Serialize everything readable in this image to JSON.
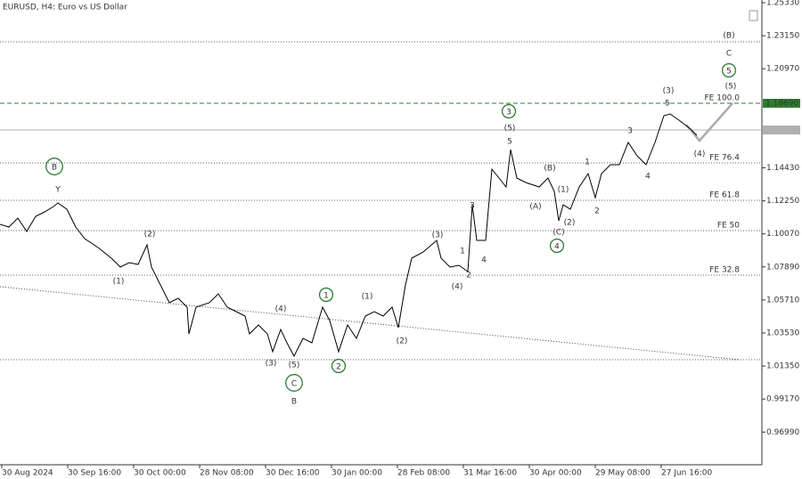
{
  "chart_data": {
    "type": "line",
    "title": "EURUSD, H4:  Euro vs US Dollar",
    "series": [
      {
        "color": "#000000",
        "x": [
          0,
          10,
          20,
          30,
          40,
          50,
          60,
          65,
          75,
          85,
          95,
          110,
          125,
          135,
          145,
          155,
          165,
          170,
          180,
          190,
          200,
          210,
          212,
          220,
          235,
          245,
          255,
          265,
          275,
          280,
          290,
          300,
          306,
          315,
          322,
          330,
          340,
          350,
          362,
          370,
          380,
          390,
          400,
          410,
          420,
          430,
          440,
          447,
          455,
          462,
          475,
          490,
          495,
          505,
          515,
          525,
          530,
          535,
          545,
          552,
          560,
          568,
          573,
          580,
          590,
          605,
          615,
          622,
          627,
          632,
          640,
          650,
          660,
          668,
          675,
          685,
          695,
          705,
          715,
          725,
          735,
          745,
          752,
          762,
          775,
          782
        ],
        "values": [
          1.10699,
          1.10522,
          1.1111,
          1.10229,
          1.11228,
          1.11521,
          1.11874,
          1.12109,
          1.11698,
          1.10522,
          1.09759,
          1.09171,
          1.08466,
          1.07878,
          1.08172,
          1.08055,
          1.09347,
          1.07878,
          1.06703,
          1.05528,
          1.05822,
          1.05234,
          1.03471,
          1.05234,
          1.05528,
          1.06115,
          1.05234,
          1.0494,
          1.04647,
          1.03471,
          1.04059,
          1.03471,
          1.02296,
          1.03765,
          1.02884,
          1.02002,
          1.03177,
          1.02884,
          1.05234,
          1.04353,
          1.02296,
          1.04059,
          1.03177,
          1.04647,
          1.0494,
          1.04647,
          1.05234,
          1.03883,
          1.06703,
          1.08466,
          1.08877,
          1.09641,
          1.08466,
          1.07878,
          1.07996,
          1.07584,
          1.11991,
          1.09641,
          1.09641,
          1.14342,
          1.13754,
          1.13167,
          1.15635,
          1.13754,
          1.1346,
          1.13167,
          1.13754,
          1.12873,
          1.10934,
          1.11991,
          1.11698,
          1.13167,
          1.14048,
          1.12462,
          1.14048,
          1.14636,
          1.14636,
          1.16105,
          1.15223,
          1.14636,
          1.16105,
          1.17867,
          1.17985,
          1.17574,
          1.16986,
          1.16575
        ]
      }
    ],
    "xlim": [
      0,
      855
    ],
    "xticks": [
      {
        "value": 2,
        "label": "30 Aug 2024"
      },
      {
        "value": 76,
        "label": "30 Sep 16:00"
      },
      {
        "value": 150,
        "label": "30 Oct 00:00"
      },
      {
        "value": 224,
        "label": "28 Nov 08:00"
      },
      {
        "value": 298,
        "label": "30 Dec 16:00"
      },
      {
        "value": 372,
        "label": "30 Jan 00:00"
      },
      {
        "value": 446,
        "label": "28 Feb 08:00"
      },
      {
        "value": 520,
        "label": "31 Mar 16:00"
      },
      {
        "value": 594,
        "label": "30 Apr 00:00"
      },
      {
        "value": 668,
        "label": "29 May 08:00"
      },
      {
        "value": 742,
        "label": "27 Jun 16:00"
      }
    ],
    "ylim": [
      0.94834,
      1.25506
    ],
    "yticks": [
      {
        "value": 1.2533,
        "label": "1.25330"
      },
      {
        "value": 1.2315,
        "label": "1.23150"
      },
      {
        "value": 1.2097,
        "label": "1.20970"
      },
      {
        "value": 1.1443,
        "label": "1.14430"
      },
      {
        "value": 1.1225,
        "label": "1.12250"
      },
      {
        "value": 1.1007,
        "label": "1.10070"
      },
      {
        "value": 1.0789,
        "label": "1.07890"
      },
      {
        "value": 1.0571,
        "label": "1.05710"
      },
      {
        "value": 1.0353,
        "label": "1.03530"
      },
      {
        "value": 1.0135,
        "label": "1.01350"
      },
      {
        "value": 0.9917,
        "label": "0.99170"
      },
      {
        "value": 0.9699,
        "label": "0.96990"
      }
    ],
    "levels": [
      {
        "value": 1.22745,
        "color": "#666666",
        "style": "dotted"
      },
      {
        "value": 1.1869,
        "label": "FE 100.0",
        "price_label": "1.18690",
        "color": "#2e7d32",
        "style": "dashed"
      },
      {
        "value": 1.16927,
        "color": "#b0b0b0",
        "style": "solid"
      },
      {
        "value": 1.14753,
        "label": "FE 76.4",
        "color": "#666666",
        "style": "dotted"
      },
      {
        "value": 1.12285,
        "label": "FE 61.8",
        "color": "#666666",
        "style": "dotted"
      },
      {
        "value": 1.10287,
        "label": "FE 50",
        "color": "#666666",
        "style": "dotted"
      },
      {
        "value": 1.07349,
        "label": "FE 32.8",
        "color": "#666666",
        "style": "dotted"
      },
      {
        "value": 1.01767,
        "color": "#666666",
        "style": "dotted"
      }
    ],
    "wave_labels": [
      {
        "text": "B",
        "color": "#2e7d32",
        "circled": true
      },
      {
        "text": "Y",
        "color": "#a0201c"
      },
      {
        "text": "(2)",
        "color": "#1f2a80"
      },
      {
        "text": "(1)",
        "color": "#1f2a80"
      },
      {
        "text": "(4)",
        "color": "#1f2a80"
      },
      {
        "text": "(3)",
        "color": "#1f2a80"
      },
      {
        "text": "(5)",
        "color": "#1f2a80"
      },
      {
        "text": "C",
        "color": "#2e7d32",
        "circled": true
      },
      {
        "text": "B",
        "color": "#a0201c"
      },
      {
        "text": "1",
        "color": "#2e7d32",
        "circled": true
      },
      {
        "text": "2",
        "color": "#2e7d32",
        "circled": true
      },
      {
        "text": "(1)",
        "color": "#1f2a80"
      },
      {
        "text": "(2)",
        "color": "#1f2a80"
      },
      {
        "text": "(3)",
        "color": "#1f2a80"
      },
      {
        "text": "1",
        "color": "#a0201c"
      },
      {
        "text": "(4)",
        "color": "#1f2a80"
      },
      {
        "text": "2",
        "color": "#a0201c"
      },
      {
        "text": "3",
        "color": "#a0201c"
      },
      {
        "text": "4",
        "color": "#a0201c"
      },
      {
        "text": "3",
        "color": "#2e7d32",
        "circled": true
      },
      {
        "text": "(5)",
        "color": "#1f2a80"
      },
      {
        "text": "5",
        "color": "#a0201c"
      },
      {
        "text": "(B)",
        "color": "#1f2a80"
      },
      {
        "text": "(A)",
        "color": "#1f2a80"
      },
      {
        "text": "(1)",
        "color": "#1f2a80"
      },
      {
        "text": "(C)",
        "color": "#1f2a80"
      },
      {
        "text": "4",
        "color": "#2e7d32",
        "circled": true
      },
      {
        "text": "(2)",
        "color": "#1f2a80"
      },
      {
        "text": "1",
        "color": "#a0201c"
      },
      {
        "text": "2",
        "color": "#a0201c"
      },
      {
        "text": "3",
        "color": "#a0201c"
      },
      {
        "text": "4",
        "color": "#a0201c"
      },
      {
        "text": "(3)",
        "color": "#1f2a80"
      },
      {
        "text": "5",
        "color": "#a0201c"
      },
      {
        "text": "(4)",
        "color": "#1f2a80"
      },
      {
        "text": "(B)",
        "color": "#1f2a80",
        "circled": true
      },
      {
        "text": "C",
        "color": "#a0201c"
      },
      {
        "text": "5",
        "color": "#2e7d32",
        "circled": true
      },
      {
        "text": "(5)",
        "color": "#1f2a80"
      }
    ]
  }
}
